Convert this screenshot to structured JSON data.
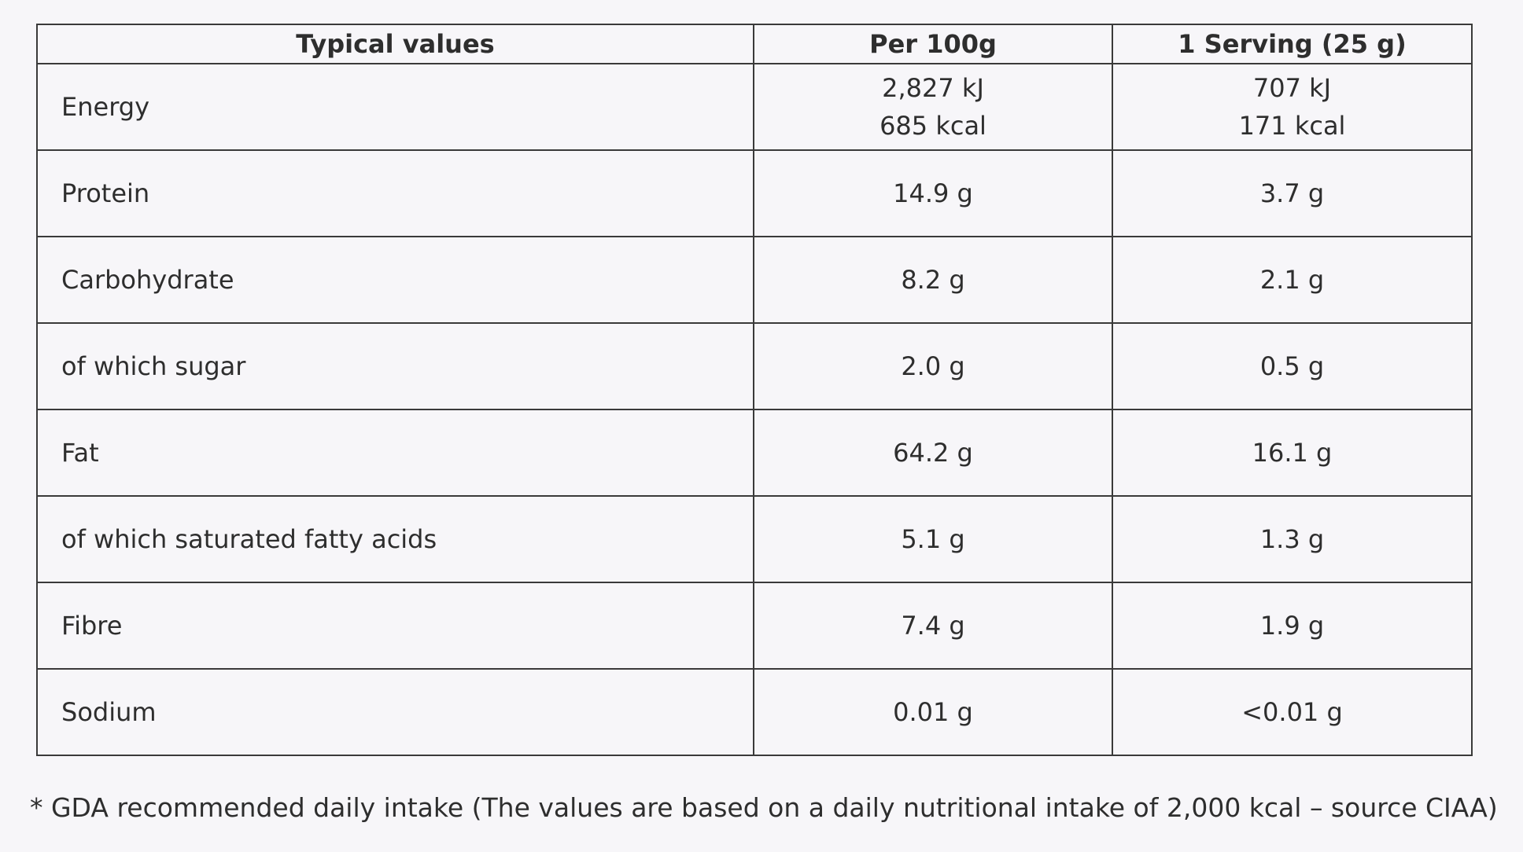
{
  "table": {
    "headers": [
      "Typical values",
      "Per 100g",
      "1 Serving (25 g)"
    ],
    "rows": [
      {
        "nutrient": "Energy",
        "per100": [
          "2,827 kJ",
          "685 kcal"
        ],
        "serving": [
          "707 kJ",
          "171 kcal"
        ]
      },
      {
        "nutrient": "Protein",
        "per100": [
          "14.9 g"
        ],
        "serving": [
          "3.7 g"
        ]
      },
      {
        "nutrient": "Carbohydrate",
        "per100": [
          "8.2 g"
        ],
        "serving": [
          "2.1 g"
        ]
      },
      {
        "nutrient": "of which sugar",
        "per100": [
          "2.0 g"
        ],
        "serving": [
          "0.5 g"
        ]
      },
      {
        "nutrient": "Fat",
        "per100": [
          "64.2 g"
        ],
        "serving": [
          "16.1 g"
        ]
      },
      {
        "nutrient": "of which saturated fatty acids",
        "per100": [
          "5.1 g"
        ],
        "serving": [
          "1.3 g"
        ]
      },
      {
        "nutrient": "Fibre",
        "per100": [
          "7.4 g"
        ],
        "serving": [
          "1.9 g"
        ]
      },
      {
        "nutrient": "Sodium",
        "per100": [
          "0.01 g"
        ],
        "serving": [
          "<0.01 g"
        ]
      }
    ]
  },
  "footnote": "* GDA recommended daily intake (The values are based on a daily nutritional intake of 2,000 kcal – source CIAA)"
}
